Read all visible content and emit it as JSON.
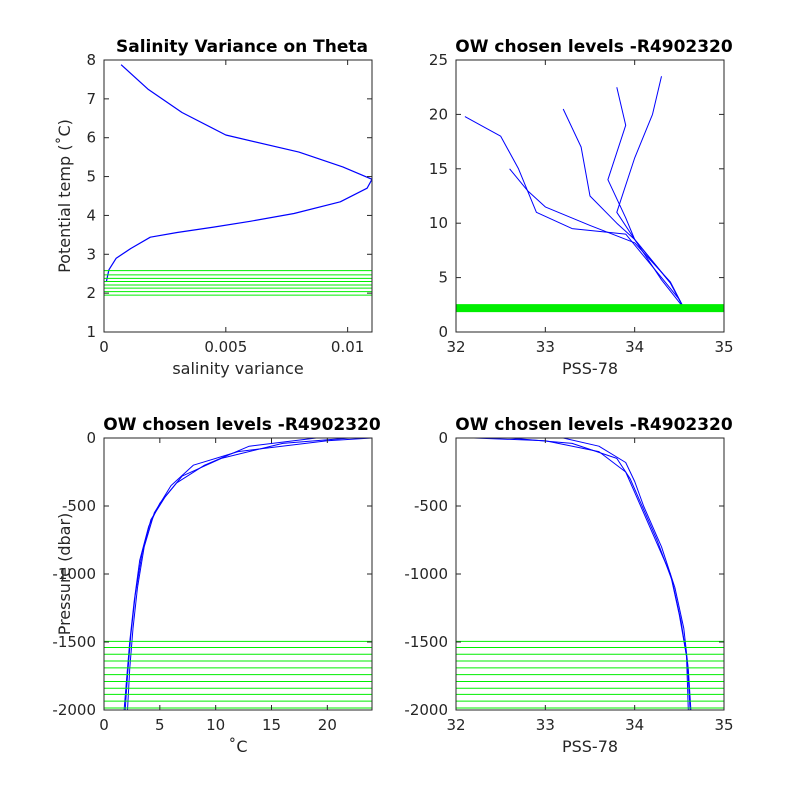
{
  "colors": {
    "profile": "#0000ff",
    "levels": "#00ee00",
    "axes": "#262626"
  },
  "chart_data": [
    {
      "type": "line",
      "title": "Salinity Variance on Theta",
      "xlabel": "salinity variance",
      "ylabel": "Potential temp (˚C)",
      "xlim": [
        0,
        0.011
      ],
      "ylim": [
        1,
        8
      ],
      "xticks": [
        0,
        0.005,
        0.01
      ],
      "xtick_labels": [
        "0",
        "0.005",
        "0.01"
      ],
      "yticks": [
        1,
        2,
        3,
        4,
        5,
        6,
        7,
        8
      ],
      "ytick_labels": [
        "1",
        "2",
        "3",
        "4",
        "5",
        "6",
        "7",
        "8"
      ],
      "series": [
        {
          "x": [
            0.0007,
            0.0018,
            0.0032,
            0.005,
            0.008,
            0.0098,
            0.011,
            0.0108,
            0.0097,
            0.0078,
            0.006,
            0.0045,
            0.003,
            0.0019,
            0.0011,
            0.0005,
            0.0002,
            0.0001
          ],
          "y": [
            7.88,
            7.25,
            6.65,
            6.07,
            5.63,
            5.25,
            4.93,
            4.7,
            4.35,
            4.05,
            3.85,
            3.7,
            3.56,
            3.44,
            3.15,
            2.9,
            2.6,
            2.3
          ]
        }
      ],
      "hlines": [
        1.95,
        2.04,
        2.13,
        2.21,
        2.3,
        2.38,
        2.47,
        2.58
      ]
    },
    {
      "type": "line",
      "title": "OW chosen levels -R4902320",
      "xlabel": "PSS-78",
      "ylabel": "",
      "xlim": [
        32,
        35
      ],
      "ylim": [
        0,
        25
      ],
      "xticks": [
        32,
        33,
        34,
        35
      ],
      "xtick_labels": [
        "32",
        "33",
        "34",
        "35"
      ],
      "yticks": [
        0,
        5,
        10,
        15,
        20,
        25
      ],
      "ytick_labels": [
        "0",
        "5",
        "10",
        "15",
        "20",
        "25"
      ],
      "series": [
        {
          "x": [
            32.1,
            32.5,
            32.7,
            32.9,
            33.3,
            33.9,
            34.3,
            34.5,
            34.55
          ],
          "y": [
            19.8,
            18.0,
            15.0,
            11.0,
            9.5,
            9.0,
            5.0,
            3.0,
            2.2
          ]
        },
        {
          "x": [
            33.2,
            33.4,
            33.5,
            33.8,
            34.0,
            34.4,
            34.55
          ],
          "y": [
            20.5,
            17.0,
            12.5,
            10.0,
            8.5,
            4.5,
            2.2
          ]
        },
        {
          "x": [
            33.8,
            33.9,
            33.7,
            33.9,
            34.0,
            34.4,
            34.55
          ],
          "y": [
            22.5,
            19.0,
            14.0,
            10.5,
            8.5,
            4.5,
            2.2
          ]
        },
        {
          "x": [
            34.3,
            34.2,
            34.0,
            33.8,
            34.0,
            34.3,
            34.55
          ],
          "y": [
            23.5,
            20.0,
            16.0,
            11.0,
            8.5,
            4.8,
            2.2
          ]
        },
        {
          "x": [
            32.6,
            32.8,
            33.0,
            33.5,
            34.0,
            34.4,
            34.55
          ],
          "y": [
            15.0,
            13.0,
            11.5,
            9.8,
            8.2,
            4.6,
            2.2
          ]
        }
      ],
      "hlines": [
        2.2
      ]
    },
    {
      "type": "line",
      "title": "OW chosen levels -R4902320",
      "xlabel": "˚C",
      "ylabel": "Pressure (dbar)",
      "xlim": [
        0,
        24
      ],
      "ylim": [
        -2000,
        0
      ],
      "xticks": [
        0,
        5,
        10,
        15,
        20
      ],
      "xtick_labels": [
        "0",
        "5",
        "10",
        "15",
        "20"
      ],
      "yticks": [
        -2000,
        -1500,
        -1000,
        -500,
        0
      ],
      "ytick_labels": [
        "-2000",
        "-1500",
        "-1000",
        "-500",
        "0"
      ],
      "series": [
        {
          "x": [
            24.0,
            20.0,
            12.0,
            8.0,
            6.0,
            4.5,
            3.6,
            3.0,
            2.6,
            2.3,
            2.1
          ],
          "y": [
            0,
            -20,
            -100,
            -200,
            -350,
            -550,
            -800,
            -1100,
            -1400,
            -1700,
            -2000
          ]
        },
        {
          "x": [
            22.0,
            16.0,
            10.5,
            7.0,
            5.5,
            4.2,
            3.4,
            2.8,
            2.4,
            2.1,
            1.9
          ],
          "y": [
            0,
            -40,
            -150,
            -280,
            -430,
            -600,
            -850,
            -1150,
            -1450,
            -1750,
            -2000
          ]
        },
        {
          "x": [
            19.0,
            13.0,
            9.0,
            6.5,
            5.0,
            4.0,
            3.2,
            2.7,
            2.3,
            2.0,
            1.8
          ],
          "y": [
            0,
            -60,
            -200,
            -330,
            -480,
            -650,
            -900,
            -1200,
            -1500,
            -1800,
            -2000
          ]
        }
      ],
      "hlines": [
        -1495,
        -1540,
        -1590,
        -1640,
        -1690,
        -1740,
        -1790,
        -1840,
        -1885,
        -1935,
        -1985
      ]
    },
    {
      "type": "line",
      "title": "OW chosen levels -R4902320",
      "xlabel": "PSS-78",
      "ylabel": "",
      "xlim": [
        32,
        35
      ],
      "ylim": [
        -2000,
        0
      ],
      "xticks": [
        32,
        33,
        34,
        35
      ],
      "xtick_labels": [
        "32",
        "33",
        "34",
        "35"
      ],
      "yticks": [
        -2000,
        -1500,
        -1000,
        -500,
        0
      ],
      "ytick_labels": [
        "-2000",
        "-1500",
        "-1000",
        "-500",
        "0"
      ],
      "series": [
        {
          "x": [
            32.2,
            33.0,
            33.6,
            33.9,
            34.0,
            34.2,
            34.4,
            34.5,
            34.58,
            34.6
          ],
          "y": [
            0,
            -20,
            -100,
            -250,
            -400,
            -700,
            -1000,
            -1300,
            -1600,
            -2000
          ]
        },
        {
          "x": [
            32.6,
            33.3,
            33.8,
            33.95,
            34.05,
            34.25,
            34.42,
            34.52,
            34.59,
            34.62
          ],
          "y": [
            0,
            -40,
            -150,
            -300,
            -450,
            -750,
            -1050,
            -1350,
            -1650,
            -2000
          ]
        },
        {
          "x": [
            33.2,
            33.6,
            33.9,
            34.0,
            34.1,
            34.3,
            34.45,
            34.55,
            34.6,
            34.63
          ],
          "y": [
            0,
            -60,
            -180,
            -320,
            -500,
            -800,
            -1100,
            -1400,
            -1700,
            -2000
          ]
        }
      ],
      "hlines": [
        -1495,
        -1540,
        -1590,
        -1640,
        -1690,
        -1740,
        -1790,
        -1840,
        -1885,
        -1935,
        -1985
      ]
    }
  ]
}
